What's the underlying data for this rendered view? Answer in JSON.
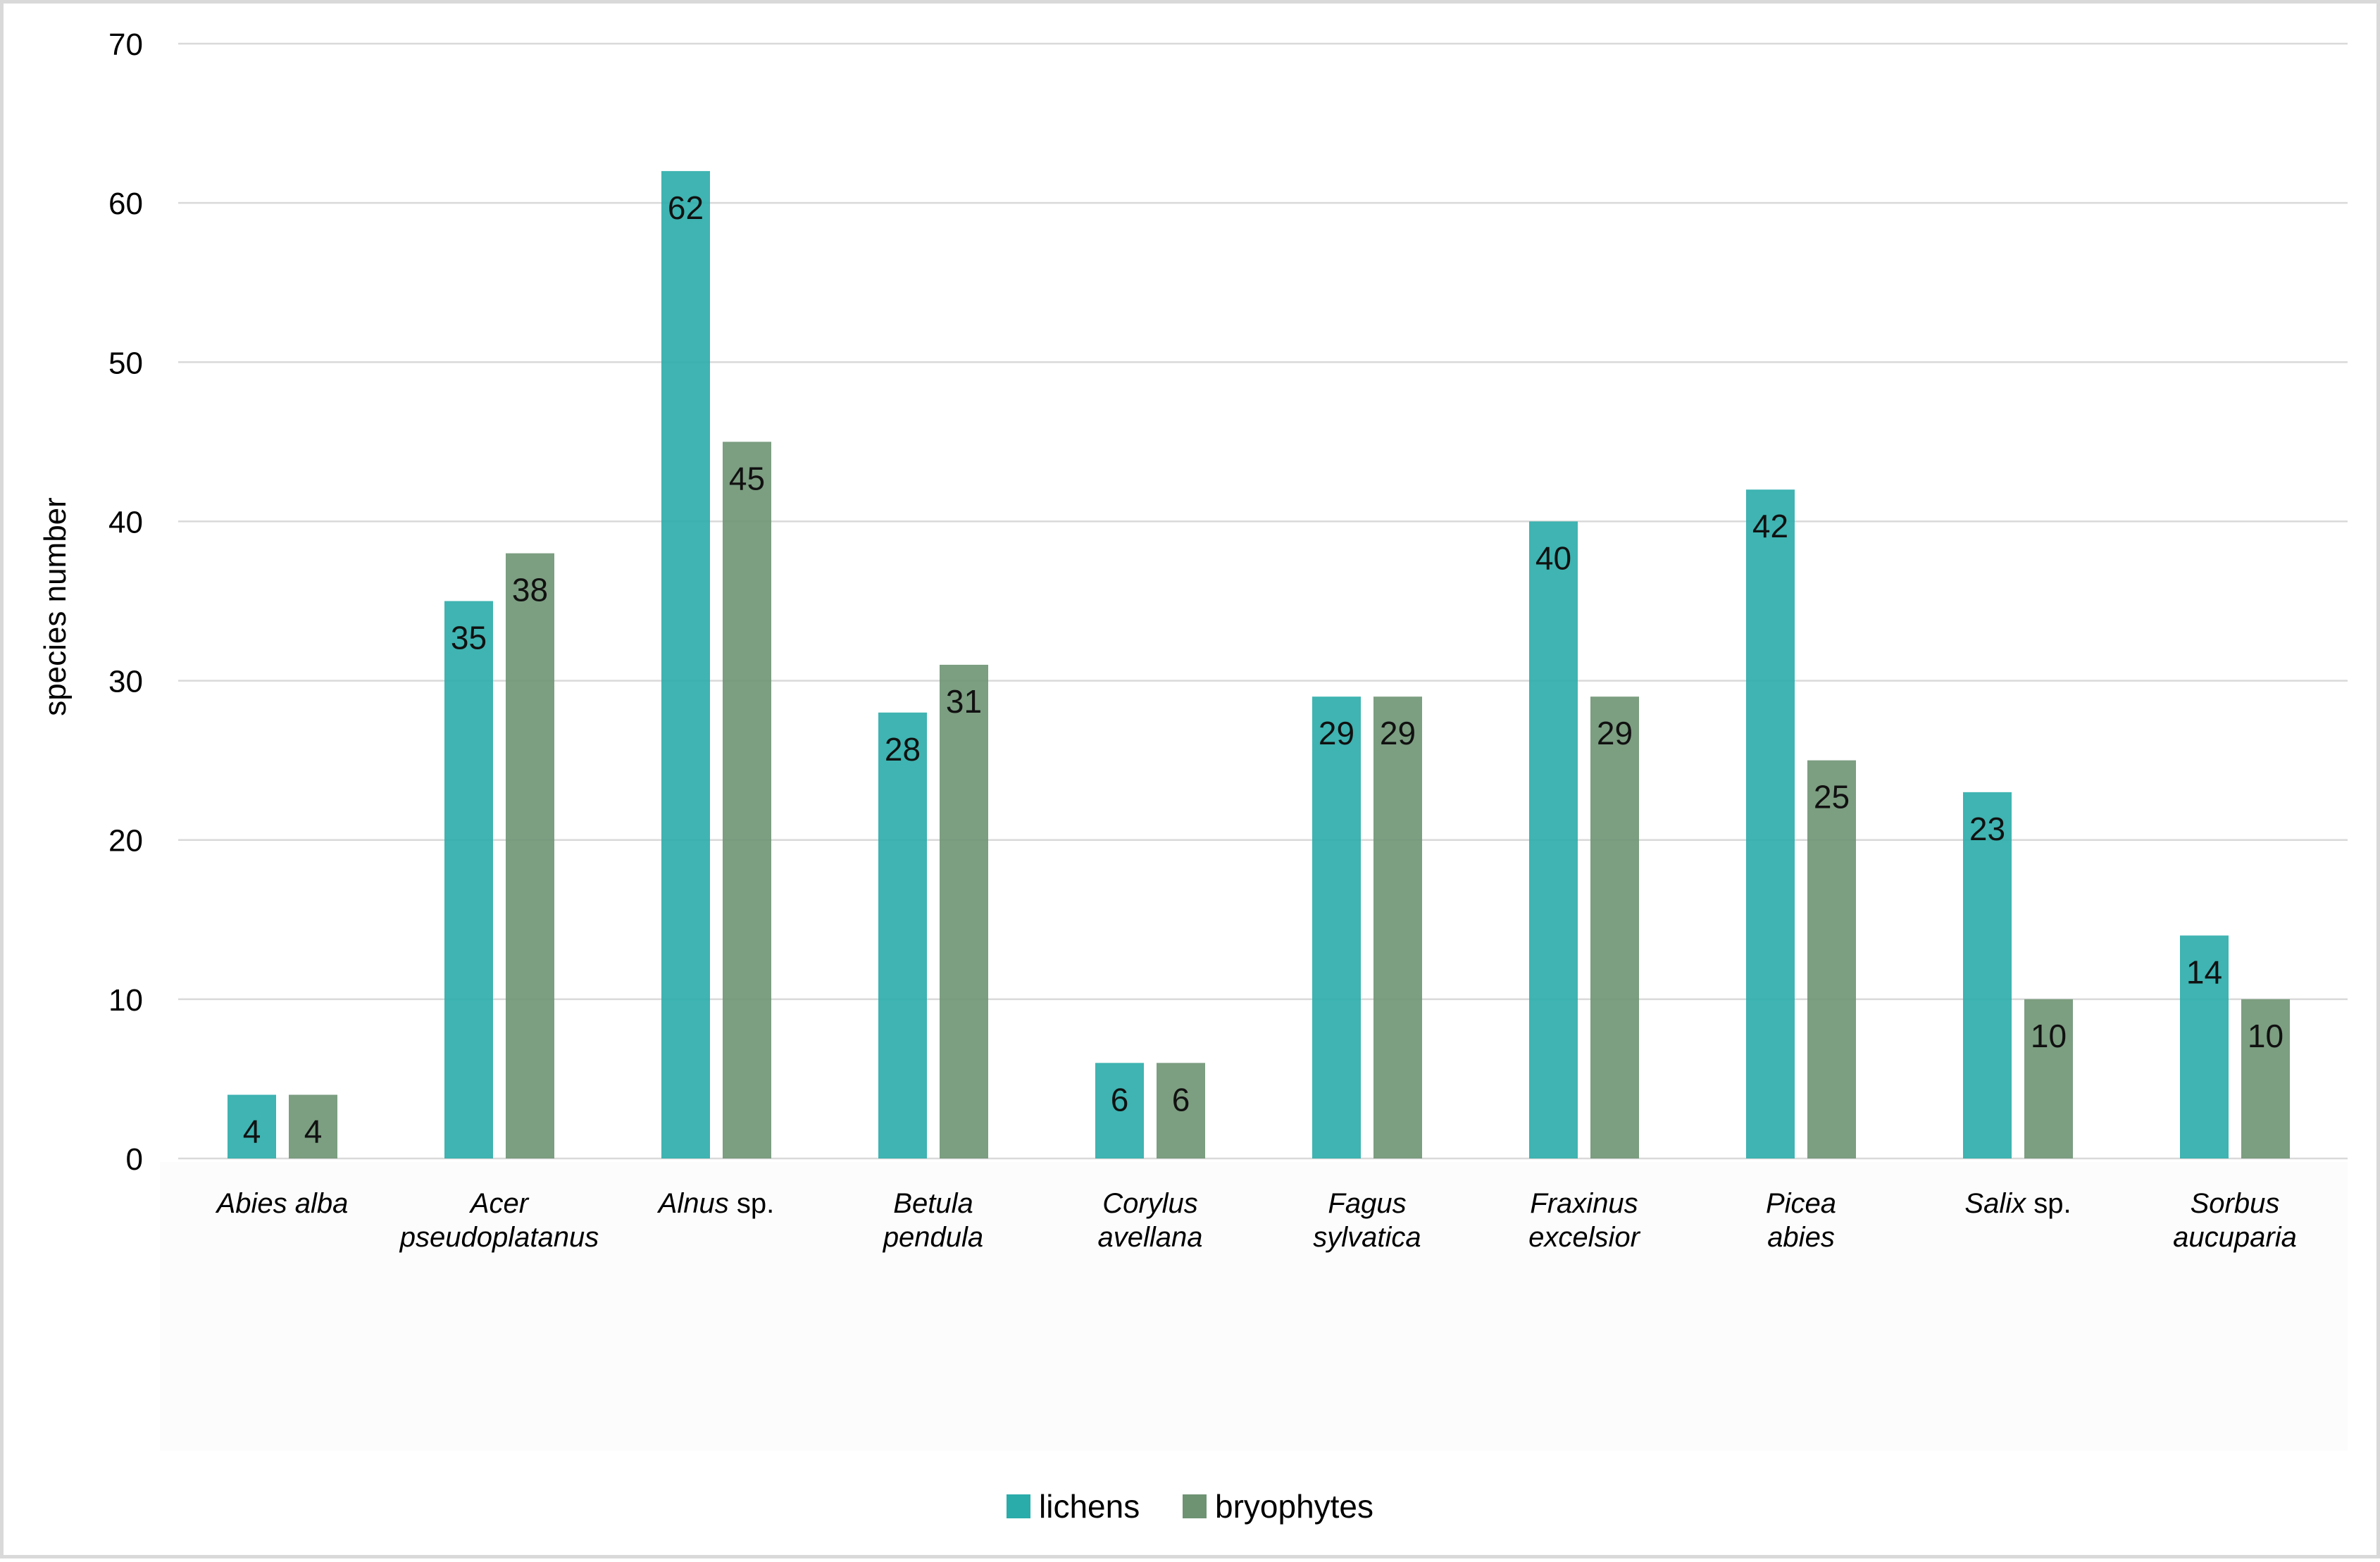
{
  "chart_data": {
    "type": "bar",
    "title": "",
    "xlabel": "",
    "ylabel": "species number",
    "ylim": [
      0,
      70
    ],
    "yticks": [
      0,
      10,
      20,
      30,
      40,
      50,
      60,
      70
    ],
    "grid": true,
    "legend_position": "bottom-center",
    "categories": [
      {
        "italic": "Abies alba",
        "suffix": "",
        "lines": [
          "Abies alba"
        ]
      },
      {
        "italic": "Acer pseudoplatanus",
        "suffix": "",
        "lines": [
          "Acer",
          "pseudoplatanus"
        ]
      },
      {
        "italic": "Alnus",
        "suffix": " sp.",
        "lines": [
          "Alnus sp."
        ]
      },
      {
        "italic": "Betula pendula",
        "suffix": "",
        "lines": [
          "Betula",
          "pendula"
        ]
      },
      {
        "italic": "Corylus avellana",
        "suffix": "",
        "lines": [
          "Corylus",
          "avellana"
        ]
      },
      {
        "italic": "Fagus sylvatica",
        "suffix": "",
        "lines": [
          "Fagus",
          "sylvatica"
        ]
      },
      {
        "italic": "Fraxinus excelsior",
        "suffix": "",
        "lines": [
          "Fraxinus",
          "excelsior"
        ]
      },
      {
        "italic": "Picea abies",
        "suffix": "",
        "lines": [
          "Picea",
          "abies"
        ]
      },
      {
        "italic": "Salix",
        "suffix": " sp.",
        "lines": [
          "Salix sp."
        ]
      },
      {
        "italic": "Sorbus aucuparia",
        "suffix": "",
        "lines": [
          "Sorbus",
          "aucuparia"
        ]
      }
    ],
    "series": [
      {
        "name": "lichens",
        "color": "#2aacaa",
        "values": [
          4,
          35,
          62,
          28,
          6,
          29,
          40,
          42,
          23,
          14
        ]
      },
      {
        "name": "bryophytes",
        "color": "#6e9373",
        "values": [
          4,
          38,
          45,
          31,
          6,
          29,
          29,
          25,
          10,
          10
        ]
      }
    ]
  }
}
